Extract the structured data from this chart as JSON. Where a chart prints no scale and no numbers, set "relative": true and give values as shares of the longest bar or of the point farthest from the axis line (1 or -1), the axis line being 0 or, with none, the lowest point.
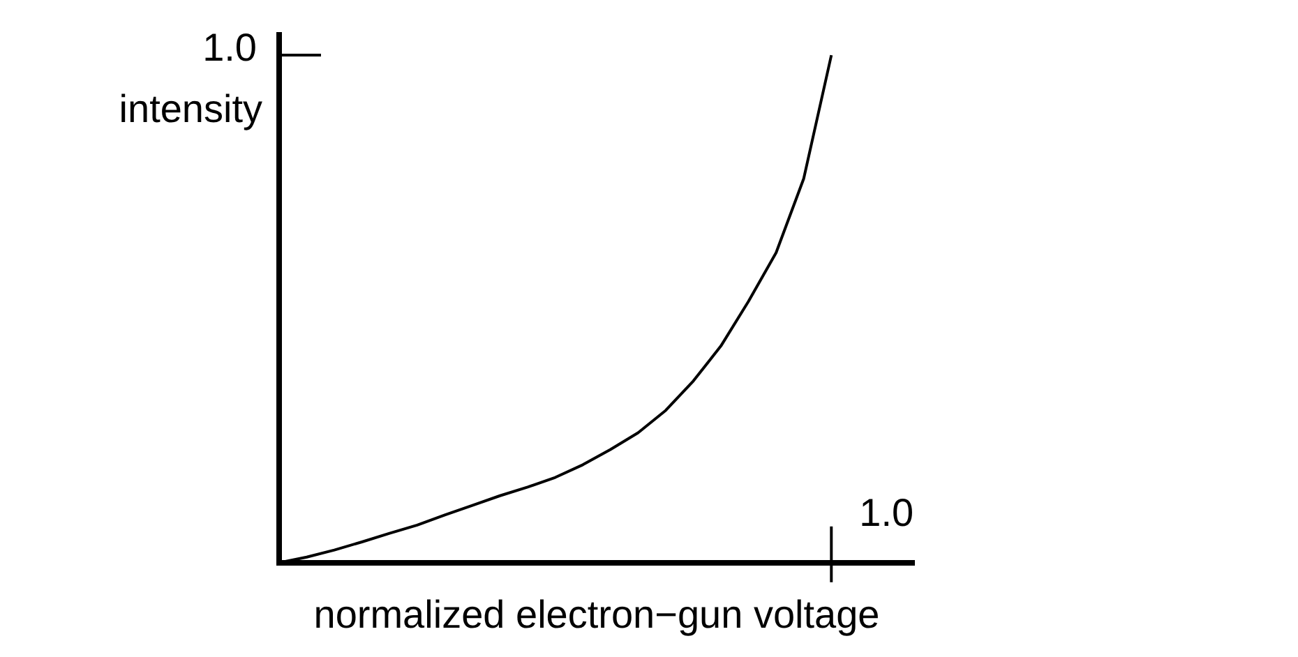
{
  "chart_data": {
    "type": "line",
    "xlabel": "normalized electron−gun voltage",
    "ylabel": "intensity",
    "relative": true,
    "categories": [
      null,
      null,
      null,
      null,
      null,
      null,
      null,
      null,
      null,
      null,
      null,
      null,
      null,
      null,
      null,
      null,
      null,
      null,
      null,
      null,
      null
    ],
    "series": [
      {
        "color": "#000000",
        "values": [
          0,
          0.011,
          0.025,
          0.041,
          0.058,
          0.074,
          0.094,
          0.113,
          0.132,
          0.149,
          0.168,
          0.193,
          0.223,
          0.256,
          0.3,
          0.358,
          0.427,
          0.515,
          0.611,
          0.757,
          1
        ]
      }
    ],
    "annotations": [
      "1.0",
      "1.0"
    ],
    "grid": false,
    "legend": false,
    "marker": "none",
    "line_style": "solid"
  }
}
